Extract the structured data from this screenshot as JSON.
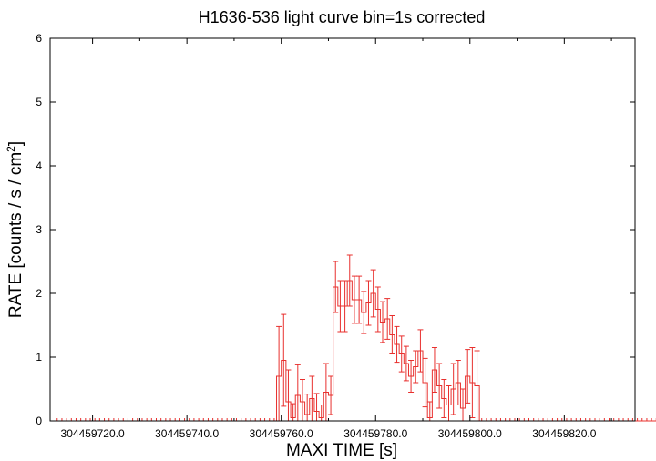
{
  "chart_data": {
    "type": "line",
    "title": "H1636-536 light curve bin=1s corrected",
    "xlabel": "MAXI TIME [s]",
    "ylabel_main": "RATE [counts / s / cm",
    "ylabel_sup": "2",
    "ylabel_close": "]",
    "xlim": [
      304459711,
      304459835
    ],
    "ylim": [
      0,
      6
    ],
    "x_ticks": [
      {
        "value": 304459720,
        "label": "304459720.0"
      },
      {
        "value": 304459740,
        "label": "304459740.0"
      },
      {
        "value": 304459760,
        "label": "304459760.0"
      },
      {
        "value": 304459780,
        "label": "304459780.0"
      },
      {
        "value": 304459800,
        "label": "304459800.0"
      },
      {
        "value": 304459820,
        "label": "304459820.0"
      }
    ],
    "y_ticks": [
      0,
      1,
      2,
      3,
      4,
      5,
      6
    ],
    "grid": false,
    "series_color": "#e8302e",
    "x_start": 304459712,
    "bin_width": 1,
    "rate": [
      0,
      0,
      0,
      0,
      0,
      0,
      0,
      0,
      0,
      0,
      0,
      0,
      0,
      0,
      0,
      0,
      0,
      0,
      0,
      0,
      0,
      0,
      0,
      0,
      0,
      0,
      0,
      0,
      0,
      0,
      0,
      0,
      0,
      0,
      0,
      0,
      0,
      0,
      0,
      0,
      0,
      0,
      0,
      0,
      0,
      0,
      0,
      0.7,
      0.95,
      0.3,
      0.05,
      0.4,
      0.3,
      0.1,
      0.35,
      0.15,
      0.05,
      0.45,
      0.4,
      2.1,
      1.8,
      1.8,
      2.2,
      1.9,
      1.9,
      1.7,
      1.85,
      2.0,
      1.75,
      1.55,
      1.6,
      1.35,
      1.2,
      1.05,
      0.9,
      0.7,
      0.85,
      1.1,
      0.6,
      0.05,
      0.8,
      0.55,
      0.35,
      0.25,
      0.5,
      0.6,
      0.2,
      0.7,
      0.6,
      0.55,
      0,
      0,
      0,
      0,
      0,
      0,
      0,
      0,
      0,
      0,
      0,
      0,
      0,
      0,
      0,
      0,
      0,
      0,
      0,
      0,
      0,
      0,
      0,
      0,
      0,
      0,
      0,
      0,
      0,
      0,
      0,
      0,
      0,
      0,
      0,
      0,
      0,
      0,
      0,
      0,
      0
    ],
    "error": [
      0,
      0,
      0,
      0,
      0,
      0,
      0,
      0,
      0,
      0,
      0,
      0,
      0,
      0,
      0,
      0,
      0,
      0,
      0,
      0,
      0,
      0,
      0,
      0,
      0,
      0,
      0,
      0,
      0,
      0,
      0,
      0,
      0,
      0,
      0,
      0,
      0,
      0,
      0,
      0,
      0,
      0,
      0,
      0,
      0,
      0,
      0,
      0.78,
      0.72,
      0.5,
      0.22,
      0.48,
      0.35,
      0.32,
      0.35,
      0.28,
      0.2,
      0.45,
      0.3,
      0.4,
      0.4,
      0.4,
      0.4,
      0.37,
      0.37,
      0.33,
      0.35,
      0.37,
      0.35,
      0.32,
      0.32,
      0.3,
      0.28,
      0.28,
      0.27,
      0.25,
      0.25,
      0.33,
      0.38,
      0.25,
      0.35,
      0.35,
      0.3,
      0.3,
      0.4,
      0.35,
      0.3,
      0.42,
      0.55,
      0.55,
      0,
      0,
      0,
      0,
      0,
      0,
      0,
      0,
      0,
      0,
      0,
      0,
      0,
      0,
      0,
      0,
      0,
      0,
      0,
      0,
      0,
      0,
      0,
      0,
      0,
      0,
      0,
      0,
      0,
      0,
      0,
      0,
      0,
      0,
      0,
      0,
      0,
      0,
      0,
      0,
      0
    ]
  }
}
